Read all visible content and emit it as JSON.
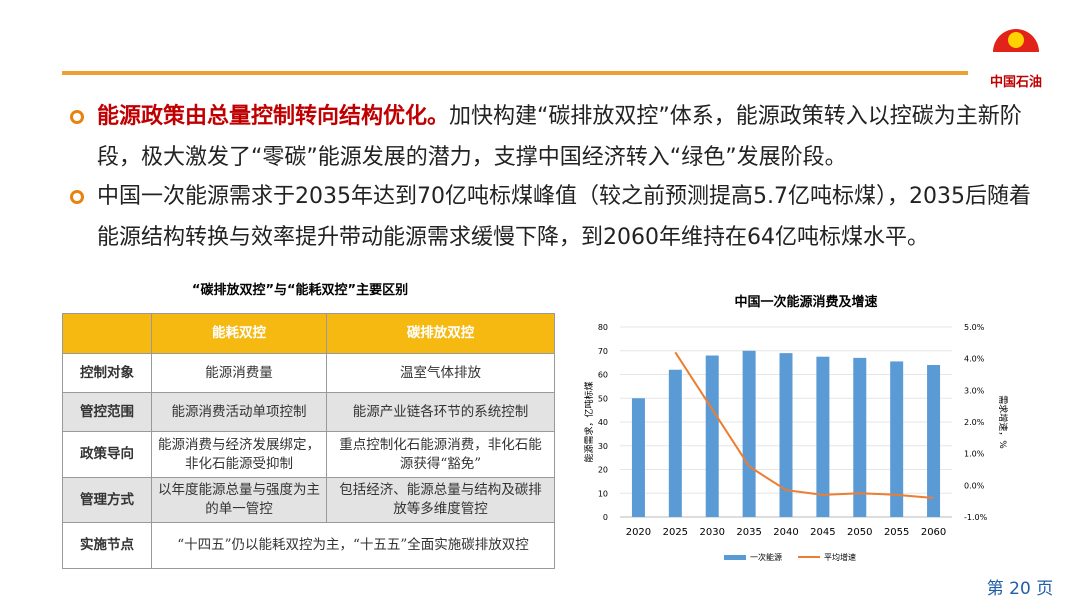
{
  "header": {
    "logo_text": "中国石油"
  },
  "bullets": [
    {
      "bold": "能源政策由总量控制转向结构优化。",
      "text": "加快构建“碳排放双控”体系，能源政策转入以控碳为主新阶段，极大激发了“零碳”能源发展的潜力，支撑中国经济转入“绿色”发展阶段。"
    },
    {
      "text": "中国一次能源需求于2035年达到70亿吨标煤峰值（较之前预测提高5.7亿吨标煤），2035后随着能源结构转换与效率提升带动能源需求缓慢下降，到2060年维持在64亿吨标煤水平。"
    }
  ],
  "table": {
    "title": "“碳排放双控”与“能耗双控”主要区别",
    "header": [
      "能耗双控",
      "碳排放双控"
    ],
    "rows": [
      [
        "控制对象",
        "能源消费量",
        "温室气体排放"
      ],
      [
        "管控范围",
        "能源消费活动单项控制",
        "能源产业链各环节的系统控制"
      ],
      [
        "政策导向",
        "能源消费与经济发展绑定，非化石能源受抑制",
        "重点控制化石能源消费，非化石能源获得“豁免”"
      ],
      [
        "管理方式",
        "以年度能源总量与强度为主的单一管控",
        "包括经济、能源总量与结构及碳排放等多维度管控"
      ],
      [
        "实施节点",
        "“十四五”仍以能耗双控为主，“十五五”全面实施碳排放双控"
      ]
    ]
  },
  "chart": {
    "type": "bar",
    "title": "中国一次能源消费及增速",
    "categories": [
      "2020",
      "2025",
      "2030",
      "2035",
      "2040",
      "2045",
      "2050",
      "2055",
      "2060"
    ],
    "ylabel": "能源需求，亿吨标煤",
    "y2label": "需求增速，%",
    "ylim": [
      0,
      80
    ],
    "yticks": [
      0,
      10,
      20,
      30,
      40,
      50,
      60,
      70,
      80
    ],
    "y2lim": [
      -1,
      5
    ],
    "y2ticks": [
      {
        "value": -1,
        "label": "-1.0%"
      },
      {
        "value": 0,
        "label": "0.0%"
      },
      {
        "value": 1,
        "label": "1.0%"
      },
      {
        "value": 2,
        "label": "2.0%"
      },
      {
        "value": 3,
        "label": "3.0%"
      },
      {
        "value": 4,
        "label": "4.0%"
      },
      {
        "value": 5,
        "label": "5.0%"
      }
    ],
    "series": [
      {
        "name": "一次能源",
        "color": "#5b9bd5",
        "values": [
          50,
          62,
          68,
          70,
          69,
          67.5,
          67,
          65.5,
          64
        ]
      },
      {
        "name": "平均增速",
        "color": "#ed7d31",
        "axis": "y2",
        "type": "line",
        "values": [
          null,
          4.2,
          2.4,
          0.6,
          -0.15,
          -0.3,
          -0.25,
          -0.3,
          -0.4
        ]
      }
    ]
  },
  "footer": {
    "page": "第 20 页"
  }
}
